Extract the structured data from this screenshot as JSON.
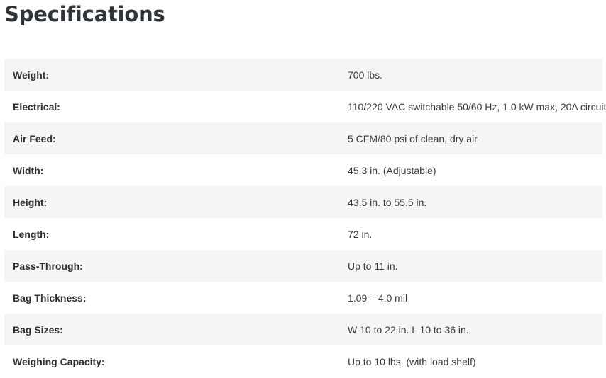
{
  "page": {
    "title": "Specifications"
  },
  "specs": [
    {
      "label": "Weight:",
      "value": "700 lbs."
    },
    {
      "label": "Electrical:",
      "value": "110/220 VAC switchable 50/60 Hz, 1.0 kW max, 20A circuit"
    },
    {
      "label": "Air Feed:",
      "value": "5 CFM/80 psi of clean, dry air"
    },
    {
      "label": "Width:",
      "value": "45.3 in. (Adjustable)"
    },
    {
      "label": "Height:",
      "value": "43.5 in. to 55.5 in."
    },
    {
      "label": "Length:",
      "value": "72 in."
    },
    {
      "label": "Pass-Through:",
      "value": "Up to 11 in."
    },
    {
      "label": "Bag Thickness:",
      "value": "1.09 – 4.0 mil"
    },
    {
      "label": "Bag Sizes:",
      "value": "W 10 to 22 in. L 10 to 36 in."
    },
    {
      "label": "Weighing Capacity:",
      "value": "Up to 10 lbs. (with load shelf)"
    }
  ],
  "colors": {
    "title": "#2f353b",
    "stripe": "#f5f5f5",
    "background": "#ffffff"
  }
}
